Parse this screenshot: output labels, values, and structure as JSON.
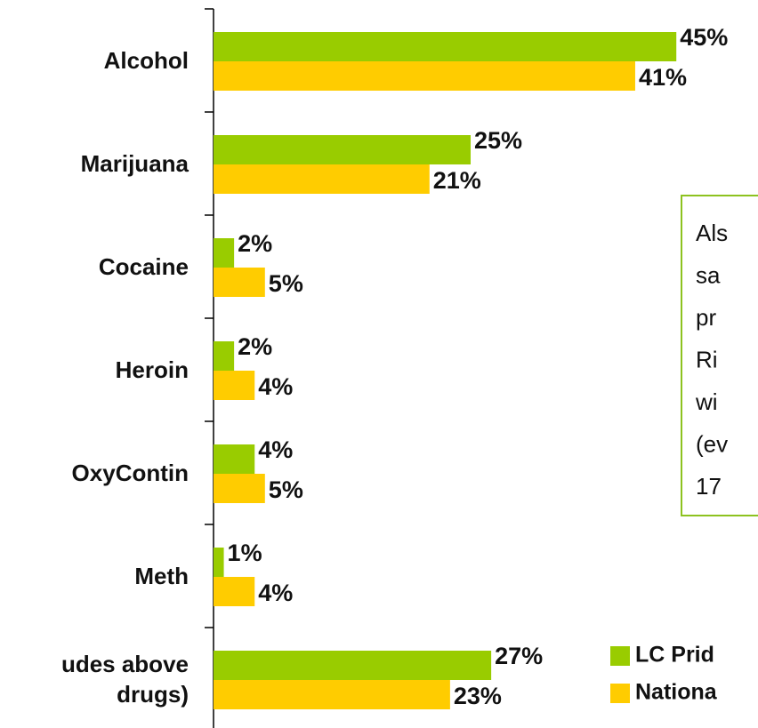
{
  "chart_data": {
    "type": "bar",
    "orientation": "horizontal",
    "categories": [
      "Alcohol",
      "Marijuana",
      "Cocaine",
      "Heroin",
      "OxyContin",
      "Meth",
      "udes above drugs)"
    ],
    "series": [
      {
        "name": "LC Prid",
        "color": "#99cc00",
        "values": [
          45,
          25,
          2,
          2,
          4,
          1,
          27
        ],
        "value_labels": [
          "45%",
          "25%",
          "2%",
          "2%",
          "4%",
          "1%",
          "27%"
        ]
      },
      {
        "name": "Nationa",
        "color": "#ffcc00",
        "values": [
          41,
          21,
          5,
          4,
          5,
          4,
          23
        ],
        "value_labels": [
          "41%",
          "21%",
          "5%",
          "4%",
          "5%",
          "4%",
          "23%"
        ]
      }
    ],
    "xlim": [
      0,
      50
    ],
    "annotation": [
      "Als",
      "sa",
      "pr",
      "Ri",
      "wi",
      "(ev",
      "17"
    ]
  }
}
